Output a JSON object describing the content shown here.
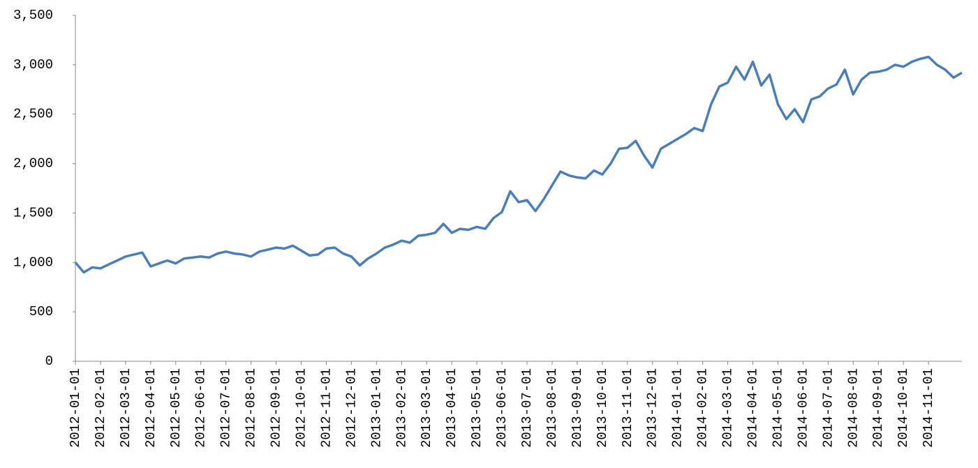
{
  "chart_data": {
    "type": "line",
    "categories": [
      "2012-01-01",
      null,
      null,
      "2012-02-01",
      null,
      null,
      "2012-03-01",
      null,
      null,
      "2012-04-01",
      null,
      null,
      "2012-05-01",
      null,
      null,
      "2012-06-01",
      null,
      null,
      "2012-07-01",
      null,
      null,
      "2012-08-01",
      null,
      null,
      "2012-09-01",
      null,
      null,
      "2012-10-01",
      null,
      null,
      "2012-11-01",
      null,
      null,
      "2012-12-01",
      null,
      null,
      "2013-01-01",
      null,
      null,
      "2013-02-01",
      null,
      null,
      "2013-03-01",
      null,
      null,
      "2013-04-01",
      null,
      null,
      "2013-05-01",
      null,
      null,
      "2013-06-01",
      null,
      null,
      "2013-07-01",
      null,
      null,
      "2013-08-01",
      null,
      null,
      "2013-09-01",
      null,
      null,
      "2013-10-01",
      null,
      null,
      "2013-11-01",
      null,
      null,
      "2013-12-01",
      null,
      null,
      "2014-01-01",
      null,
      null,
      "2014-02-01",
      null,
      null,
      "2014-03-01",
      null,
      null,
      "2014-04-01",
      null,
      null,
      "2014-05-01",
      null,
      null,
      "2014-06-01",
      null,
      null,
      "2014-07-01",
      null,
      null,
      "2014-08-01",
      null,
      null,
      "2014-09-01",
      null,
      null,
      "2014-10-01",
      null,
      null,
      "2014-11-01",
      null,
      null,
      null,
      null
    ],
    "series": [
      {
        "color": "#4a7ebb",
        "values": [
          1000,
          900,
          950,
          940,
          980,
          1020,
          1060,
          1080,
          1100,
          960,
          990,
          1020,
          990,
          1040,
          1050,
          1060,
          1050,
          1090,
          1110,
          1090,
          1080,
          1060,
          1110,
          1130,
          1150,
          1140,
          1170,
          1120,
          1070,
          1080,
          1140,
          1150,
          1090,
          1060,
          970,
          1040,
          1090,
          1150,
          1180,
          1220,
          1200,
          1270,
          1280,
          1300,
          1390,
          1300,
          1340,
          1330,
          1360,
          1340,
          1450,
          1510,
          1720,
          1610,
          1630,
          1520,
          1640,
          1780,
          1920,
          1880,
          1860,
          1850,
          1930,
          1890,
          2000,
          2150,
          2160,
          2230,
          2080,
          1960,
          2150,
          2200,
          2250,
          2300,
          2360,
          2330,
          2600,
          2780,
          2820,
          2980,
          2850,
          3030,
          2790,
          2900,
          2600,
          2450,
          2550,
          2420,
          2650,
          2680,
          2760,
          2800,
          2950,
          2700,
          2850,
          2920,
          2930,
          2950,
          3000,
          2980,
          3030,
          3060,
          3080,
          3000,
          2950,
          2870,
          2920
        ]
      }
    ],
    "ylim": [
      0,
      3500
    ],
    "yticks": [
      0,
      500,
      {
        "value": 1000,
        "label": "1,000"
      },
      {
        "value": 1500,
        "label": "1,500"
      },
      {
        "value": 2000,
        "label": "2,000"
      },
      {
        "value": 2500,
        "label": "2,500"
      },
      {
        "value": 3000,
        "label": "3,000"
      },
      {
        "value": 3500,
        "label": "3,500"
      }
    ]
  }
}
